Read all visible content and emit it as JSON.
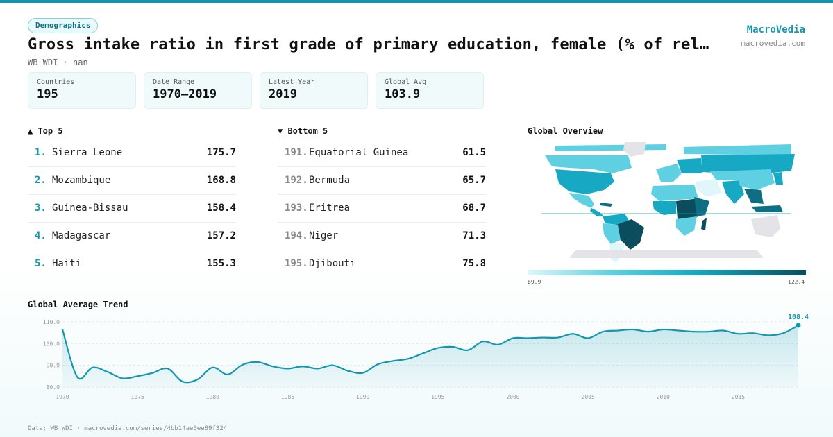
{
  "header": {
    "tag": "Demographics",
    "title": "Gross intake ratio in first grade of primary education, female (% of rel…",
    "subtitle": "WB WDI · nan",
    "brand": "MacroVedia",
    "brand_url": "macrovedia.com"
  },
  "stats": [
    {
      "label": "Countries",
      "value": "195"
    },
    {
      "label": "Date Range",
      "value": "1970–2019"
    },
    {
      "label": "Latest Year",
      "value": "2019"
    },
    {
      "label": "Global Avg",
      "value": "103.9"
    }
  ],
  "top5": {
    "heading": "▲ Top 5",
    "items": [
      {
        "rank": "1.",
        "name": "Sierra Leone",
        "value": "175.7"
      },
      {
        "rank": "2.",
        "name": "Mozambique",
        "value": "168.8"
      },
      {
        "rank": "3.",
        "name": "Guinea-Bissau",
        "value": "158.4"
      },
      {
        "rank": "4.",
        "name": "Madagascar",
        "value": "157.2"
      },
      {
        "rank": "5.",
        "name": "Haiti",
        "value": "155.3"
      }
    ]
  },
  "bottom5": {
    "heading": "▼ Bottom 5",
    "items": [
      {
        "rank": "191.",
        "name": "Equatorial Guinea",
        "value": "61.5"
      },
      {
        "rank": "192.",
        "name": "Bermuda",
        "value": "65.7"
      },
      {
        "rank": "193.",
        "name": "Eritrea",
        "value": "68.7"
      },
      {
        "rank": "194.",
        "name": "Niger",
        "value": "71.3"
      },
      {
        "rank": "195.",
        "name": "Djibouti",
        "value": "75.8"
      }
    ]
  },
  "map": {
    "heading": "Global Overview",
    "legend_min": "89.9",
    "legend_max": "122.4",
    "colors": [
      "#dff6fa",
      "#5fd0e2",
      "#17a9c4",
      "#0e6f84",
      "#0b4d5d"
    ],
    "no_data_color": "#e4e4e8"
  },
  "trend": {
    "heading": "Global Average Trend",
    "last_label": "108.4"
  },
  "chart_data": {
    "type": "area",
    "title": "Global Average Trend",
    "xlabel": "",
    "ylabel": "",
    "xlim": [
      1970,
      2019
    ],
    "ylim": [
      80,
      110
    ],
    "yticks": [
      "80.0",
      "90.0",
      "100.0",
      "110.0"
    ],
    "xticks": [
      "1970",
      "1975",
      "1980",
      "1985",
      "1990",
      "1995",
      "2000",
      "2005",
      "2010",
      "2015"
    ],
    "x": [
      1970,
      1971,
      1972,
      1973,
      1974,
      1975,
      1976,
      1977,
      1978,
      1979,
      1980,
      1981,
      1982,
      1983,
      1984,
      1985,
      1986,
      1987,
      1988,
      1989,
      1990,
      1991,
      1992,
      1993,
      1994,
      1995,
      1996,
      1997,
      1998,
      1999,
      2000,
      2001,
      2002,
      2003,
      2004,
      2005,
      2006,
      2007,
      2008,
      2009,
      2010,
      2011,
      2012,
      2013,
      2014,
      2015,
      2016,
      2017,
      2018,
      2019
    ],
    "values": [
      106.5,
      84.5,
      89,
      87,
      84,
      85,
      86.5,
      88.5,
      82.5,
      83.5,
      89,
      85.8,
      90.3,
      91.5,
      89.5,
      88.5,
      89.5,
      88.5,
      90,
      87.5,
      86.5,
      90.5,
      92,
      93,
      95.5,
      98,
      98.5,
      97,
      101,
      99.5,
      102.5,
      102.5,
      102.8,
      102.8,
      104.5,
      102.5,
      105.5,
      106,
      106.5,
      105.5,
      106.5,
      106,
      105.5,
      105.5,
      106,
      104.5,
      104.8,
      103.8,
      104.8,
      108.4
    ],
    "color": "#1497ae",
    "grid": true
  },
  "footer": "Data: WB WDI · macrovedia.com/series/4bb14ae0ee89f324"
}
